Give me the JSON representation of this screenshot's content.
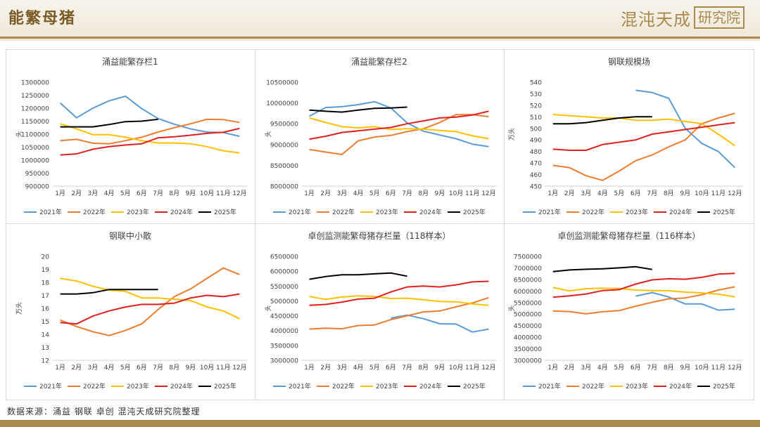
{
  "header": {
    "title": "能繁母猪",
    "logo_main": "混沌天成",
    "logo_box": "研究院"
  },
  "footer": {
    "source": "数据来源：涌益 钢联 卓创 混沌天成研究院整理"
  },
  "colors": {
    "2021年": "#5b9bd5",
    "2022年": "#ed7d31",
    "2023年": "#ffc000",
    "2024年": "#e02020",
    "2025年": "#000000",
    "header_gold": "#a9894c",
    "title_brown": "#7a5a26"
  },
  "chart_data": [
    {
      "type": "line",
      "title": "涌益能繁存栏1",
      "ylabel": "头",
      "x": [
        "1月",
        "2月",
        "3月",
        "4月",
        "5月",
        "6月",
        "7月",
        "8月",
        "9月",
        "10月",
        "11月",
        "12月"
      ],
      "ylim": [
        900000,
        1300000
      ],
      "yticks": [
        900000,
        950000,
        1000000,
        1050000,
        1100000,
        1150000,
        1200000,
        1250000,
        1300000
      ],
      "series": [
        {
          "name": "2021年",
          "values": [
            1220000,
            1163000,
            1200000,
            1228000,
            1246000,
            1198000,
            1160000,
            1138000,
            1120000,
            1108000,
            1106000,
            1092000
          ]
        },
        {
          "name": "2022年",
          "values": [
            1075000,
            1080000,
            1065000,
            1063000,
            1075000,
            1088000,
            1108000,
            1125000,
            1140000,
            1157000,
            1156000,
            1145000
          ]
        },
        {
          "name": "2023年",
          "values": [
            1140000,
            1120000,
            1098000,
            1098000,
            1088000,
            1075000,
            1066000,
            1066000,
            1063000,
            1052000,
            1036000,
            1028000
          ]
        },
        {
          "name": "2024年",
          "values": [
            1020000,
            1024000,
            1042000,
            1052000,
            1058000,
            1063000,
            1086000,
            1090000,
            1096000,
            1103000,
            1107000,
            1122000
          ]
        },
        {
          "name": "2025年",
          "values": [
            1128000,
            1128000,
            1128000,
            1137000,
            1148000,
            1150000,
            1157000,
            null,
            null,
            null,
            null,
            null
          ]
        }
      ]
    },
    {
      "type": "line",
      "title": "涌益能繁存栏2",
      "ylabel": "头",
      "x": [
        "1月",
        "2月",
        "3月",
        "4月",
        "5月",
        "6月",
        "7月",
        "8月",
        "9月",
        "10月",
        "11月",
        "12月"
      ],
      "ylim": [
        8000000,
        10500000
      ],
      "yticks": [
        8000000,
        8500000,
        9000000,
        9500000,
        10000000,
        10500000
      ],
      "series": [
        {
          "name": "2021年",
          "values": [
            9680000,
            9890000,
            9910000,
            9960000,
            10030000,
            9880000,
            9520000,
            9320000,
            9230000,
            9140000,
            9010000,
            8950000
          ]
        },
        {
          "name": "2022年",
          "values": [
            8880000,
            8820000,
            8760000,
            9090000,
            9180000,
            9220000,
            9310000,
            9380000,
            9530000,
            9720000,
            9720000,
            9670000
          ]
        },
        {
          "name": "2023年",
          "values": [
            9640000,
            9530000,
            9430000,
            9400000,
            9430000,
            9360000,
            9380000,
            9370000,
            9340000,
            9310000,
            9210000,
            9140000
          ]
        },
        {
          "name": "2024年",
          "values": [
            9130000,
            9200000,
            9290000,
            9330000,
            9370000,
            9410000,
            9500000,
            9570000,
            9640000,
            9660000,
            9710000,
            9800000
          ]
        },
        {
          "name": "2025年",
          "values": [
            9830000,
            9800000,
            9780000,
            9830000,
            9870000,
            9880000,
            9900000,
            null,
            null,
            null,
            null,
            null
          ]
        }
      ]
    },
    {
      "type": "line",
      "title": "钢联规模场",
      "ylabel": "万头",
      "x": [
        "1月",
        "2月",
        "3月",
        "4月",
        "5月",
        "6月",
        "7月",
        "8月",
        "9月",
        "10月",
        "11月",
        "12月"
      ],
      "ylim": [
        450,
        540
      ],
      "yticks": [
        450,
        460,
        470,
        480,
        490,
        500,
        510,
        520,
        530,
        540
      ],
      "series": [
        {
          "name": "2021年",
          "values": [
            null,
            null,
            null,
            null,
            null,
            533,
            531,
            526,
            500,
            487,
            480,
            466
          ]
        },
        {
          "name": "2022年",
          "values": [
            468,
            466,
            459,
            455,
            463,
            472,
            477,
            484,
            490,
            504,
            509,
            513
          ]
        },
        {
          "name": "2023年",
          "values": [
            512,
            511,
            510,
            509,
            509,
            507,
            507,
            508,
            506,
            504,
            495,
            485
          ]
        },
        {
          "name": "2024年",
          "values": [
            482,
            481,
            481,
            486,
            488,
            490,
            495,
            497,
            499,
            501,
            503,
            505
          ]
        },
        {
          "name": "2025年",
          "values": [
            504,
            504,
            505,
            507,
            509,
            510,
            510,
            null,
            null,
            null,
            null,
            null
          ]
        }
      ]
    },
    {
      "type": "line",
      "title": "钢联中小散",
      "ylabel": "万头",
      "x": [
        "1月",
        "2月",
        "3月",
        "4月",
        "5月",
        "6月",
        "7月",
        "8月",
        "9月",
        "10月",
        "11月",
        "12月"
      ],
      "ylim": [
        12,
        20
      ],
      "yticks": [
        12,
        13,
        14,
        15,
        16,
        17,
        18,
        19,
        20
      ],
      "series": [
        {
          "name": "2021年",
          "values": [
            null,
            null,
            null,
            null,
            null,
            null,
            null,
            null,
            null,
            null,
            null,
            null
          ]
        },
        {
          "name": "2022年",
          "values": [
            15.1,
            14.6,
            14.2,
            13.9,
            14.3,
            14.8,
            15.9,
            16.9,
            17.5,
            18.3,
            19.1,
            18.6
          ]
        },
        {
          "name": "2023年",
          "values": [
            18.3,
            18.1,
            17.7,
            17.4,
            17.3,
            16.8,
            16.8,
            16.7,
            16.6,
            16.1,
            15.8,
            15.2
          ]
        },
        {
          "name": "2024年",
          "values": [
            14.9,
            14.8,
            15.4,
            15.8,
            16.1,
            16.3,
            16.3,
            16.4,
            16.8,
            17.0,
            16.9,
            17.1
          ]
        },
        {
          "name": "2025年",
          "values": [
            17.1,
            17.1,
            17.2,
            17.45,
            17.45,
            17.45,
            17.45,
            null,
            null,
            null,
            null,
            null
          ]
        }
      ]
    },
    {
      "type": "line",
      "title": "卓创监测能繁母猪存栏量（118样本）",
      "ylabel": "头",
      "x": [
        "1月",
        "2月",
        "3月",
        "4月",
        "5月",
        "6月",
        "7月",
        "8月",
        "9月",
        "10月",
        "11月",
        "12月"
      ],
      "ylim": [
        3000000,
        6500000
      ],
      "yticks": [
        3000000,
        3500000,
        4000000,
        4500000,
        5000000,
        5500000,
        6000000,
        6500000
      ],
      "series": [
        {
          "name": "2021年",
          "values": [
            null,
            null,
            null,
            null,
            null,
            4420000,
            4520000,
            4400000,
            4230000,
            4220000,
            3950000,
            4050000
          ]
        },
        {
          "name": "2022年",
          "values": [
            4050000,
            4080000,
            4060000,
            4170000,
            4190000,
            4370000,
            4500000,
            4630000,
            4660000,
            4800000,
            4930000,
            5110000
          ]
        },
        {
          "name": "2023年",
          "values": [
            5150000,
            5050000,
            5130000,
            5170000,
            5150000,
            5080000,
            5090000,
            5040000,
            4980000,
            4970000,
            4900000,
            4850000
          ]
        },
        {
          "name": "2024年",
          "values": [
            4850000,
            4880000,
            4960000,
            5060000,
            5090000,
            5300000,
            5470000,
            5500000,
            5470000,
            5540000,
            5640000,
            5660000
          ]
        },
        {
          "name": "2025年",
          "values": [
            5730000,
            5820000,
            5880000,
            5880000,
            5910000,
            5940000,
            5830000,
            null,
            null,
            null,
            null,
            null
          ]
        }
      ]
    },
    {
      "type": "line",
      "title": "卓创监测能繁母猪存栏量（116样本）",
      "ylabel": "头",
      "x": [
        "1月",
        "2月",
        "3月",
        "4月",
        "5月",
        "6月",
        "7月",
        "8月",
        "9月",
        "10月",
        "11月",
        "12月"
      ],
      "ylim": [
        3000000,
        7500000
      ],
      "yticks": [
        3000000,
        3500000,
        4000000,
        4500000,
        5000000,
        5500000,
        6000000,
        6500000,
        7000000,
        7500000
      ],
      "series": [
        {
          "name": "2021年",
          "values": [
            null,
            null,
            null,
            null,
            null,
            5780000,
            5930000,
            5740000,
            5440000,
            5440000,
            5170000,
            5210000
          ]
        },
        {
          "name": "2022年",
          "values": [
            5130000,
            5110000,
            5010000,
            5100000,
            5150000,
            5340000,
            5510000,
            5660000,
            5700000,
            5840000,
            6040000,
            6180000
          ]
        },
        {
          "name": "2023年",
          "values": [
            6150000,
            6000000,
            6100000,
            6120000,
            6110000,
            6040000,
            6020000,
            6010000,
            5950000,
            5920000,
            5860000,
            5750000
          ]
        },
        {
          "name": "2024年",
          "values": [
            5730000,
            5790000,
            5870000,
            6020000,
            6060000,
            6300000,
            6480000,
            6530000,
            6510000,
            6590000,
            6730000,
            6760000
          ]
        },
        {
          "name": "2025年",
          "values": [
            6840000,
            6910000,
            6940000,
            6960000,
            7000000,
            7050000,
            6930000,
            null,
            null,
            null,
            null,
            null
          ]
        }
      ]
    }
  ]
}
